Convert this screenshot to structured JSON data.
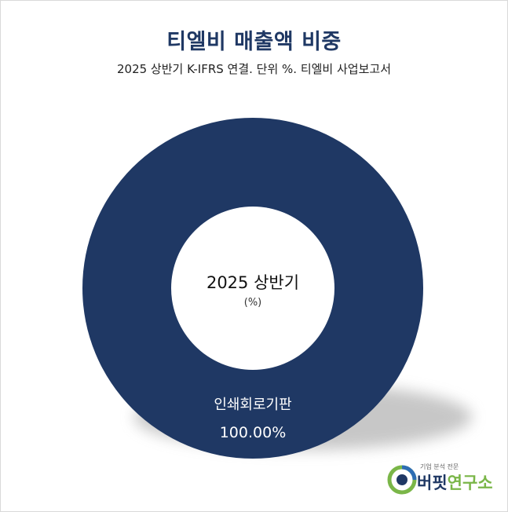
{
  "chart_data": {
    "type": "pie",
    "variant": "donut",
    "title": "티엘비 매출액 비중",
    "subtitle": "2025 상반기 K-IFRS 연결. 단위 %. 티엘비 사업보고서",
    "center_label": "2025 상반기",
    "center_unit": "(%)",
    "slices": [
      {
        "label": "인쇄회로기판",
        "value": 100.0,
        "value_label": "100.00%",
        "color": "#1f3864"
      }
    ]
  },
  "brand": {
    "tagline": "기업 분석 전문",
    "name_part1": "버핏",
    "name_part2": "연구소"
  },
  "colors": {
    "primary": "#1f3864",
    "accent": "#7ab648"
  }
}
